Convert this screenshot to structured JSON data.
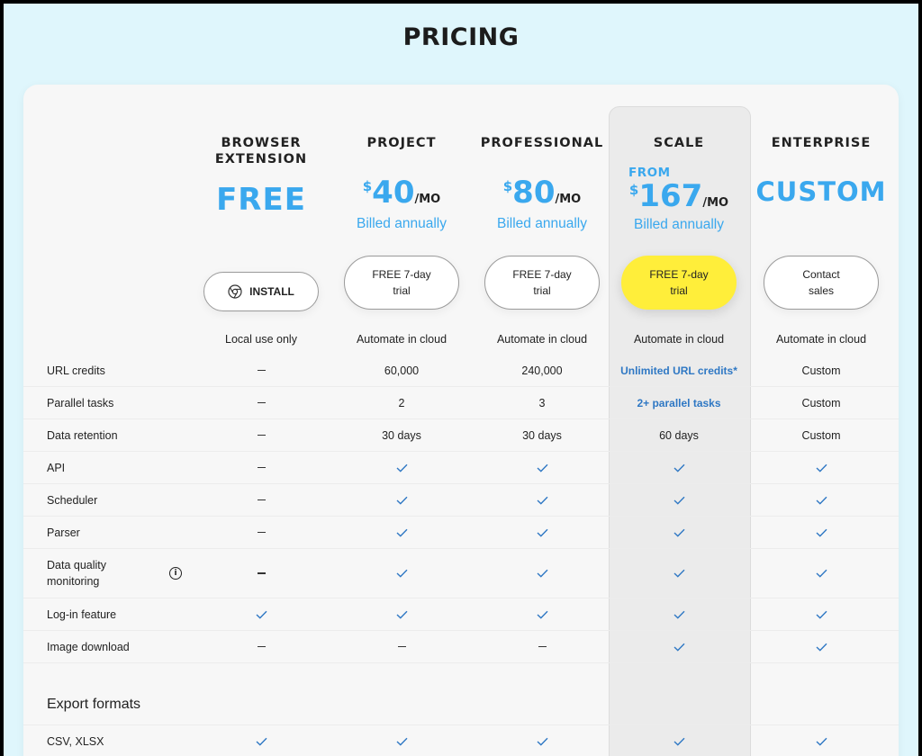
{
  "title": "PRICING",
  "plans": [
    {
      "name": "BROWSER EXTENSION",
      "price": "FREE",
      "cta": "INSTALL",
      "usage": "Local use only"
    },
    {
      "name": "PROJECT",
      "currency": "$",
      "price": "40",
      "per": "/MO",
      "billed": "Billed annually",
      "cta": "FREE 7-day trial",
      "usage": "Automate in cloud"
    },
    {
      "name": "PROFESSIONAL",
      "currency": "$",
      "price": "80",
      "per": "/MO",
      "billed": "Billed annually",
      "cta": "FREE 7-day trial",
      "usage": "Automate in cloud"
    },
    {
      "name": "SCALE",
      "from": "FROM",
      "currency": "$",
      "price": "167",
      "per": "/MO",
      "billed": "Billed annually",
      "cta": "FREE 7-day trial",
      "usage": "Automate in cloud"
    },
    {
      "name": "ENTERPRISE",
      "price": "CUSTOM",
      "cta": "Contact sales",
      "usage": "Automate in cloud"
    }
  ],
  "features": [
    {
      "label": "URL credits",
      "values": [
        "–",
        "60,000",
        "240,000",
        "Unlimited URL credits*",
        "Custom"
      ]
    },
    {
      "label": "Parallel tasks",
      "values": [
        "–",
        "2",
        "3",
        "2+ parallel tasks",
        "Custom"
      ]
    },
    {
      "label": "Data retention",
      "values": [
        "–",
        "30 days",
        "30 days",
        "60 days",
        "Custom"
      ]
    },
    {
      "label": "API",
      "values": [
        "–",
        "check",
        "check",
        "check",
        "check"
      ]
    },
    {
      "label": "Scheduler",
      "values": [
        "–",
        "check",
        "check",
        "check",
        "check"
      ]
    },
    {
      "label": "Parser",
      "values": [
        "–",
        "check",
        "check",
        "check",
        "check"
      ]
    },
    {
      "label": "Data quality monitoring",
      "values": [
        "–",
        "check",
        "check",
        "check",
        "check"
      ],
      "info": true
    },
    {
      "label": "Log-in feature",
      "values": [
        "check",
        "check",
        "check",
        "check",
        "check"
      ]
    },
    {
      "label": "Image download",
      "values": [
        "–",
        "–",
        "–",
        "check",
        "check"
      ]
    }
  ],
  "export_section": {
    "title": "Export formats",
    "rows": [
      {
        "label": "CSV, XLSX",
        "values": [
          "check",
          "check",
          "check",
          "check",
          "check"
        ]
      }
    ]
  },
  "colors": {
    "accent": "#3aa8ee",
    "highlight": "#ffee3a",
    "bold_blue": "#2f78c4",
    "check": "#2f78c4"
  }
}
